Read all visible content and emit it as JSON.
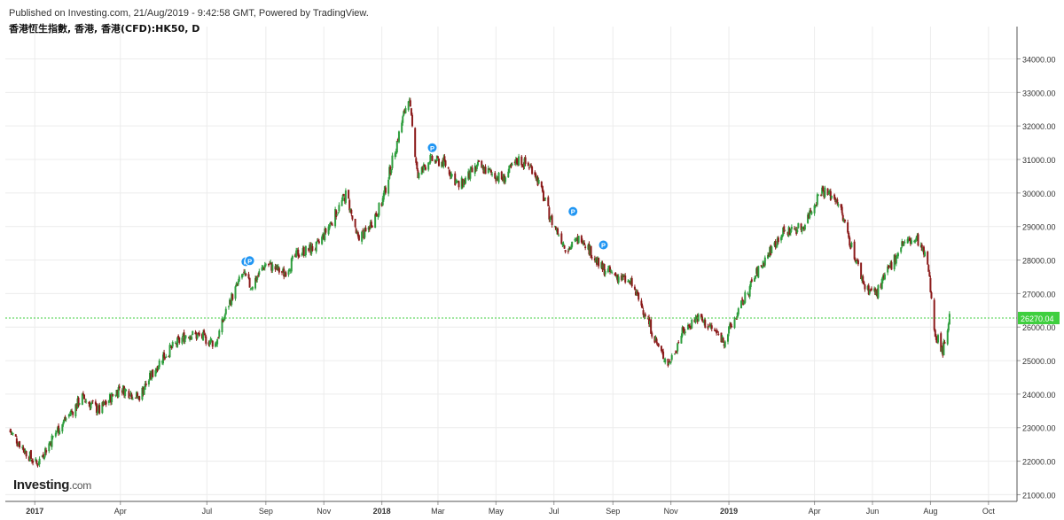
{
  "header": {
    "published": "Published on Investing.com, 21/Aug/2019 - 9:42:58 GMT, Powered by TradingView.",
    "symbol": "香港恆生指數, 香港, 香港(CFD):HK50, D"
  },
  "logo": {
    "main": "Investing",
    "suffix": ".com"
  },
  "colors": {
    "up": "#2e9e3e",
    "down": "#8b1a1a",
    "current_line": "#3fcf3f",
    "marker": "#2196f3",
    "grid": "#ececec"
  },
  "chart_data": {
    "type": "candlestick",
    "interval": "D",
    "x_tick_labels": [
      "2017",
      "Apr",
      "Jul",
      "Sep",
      "Nov",
      "2018",
      "Mar",
      "May",
      "Jul",
      "Sep",
      "Nov",
      "2019",
      "Apr",
      "Jun",
      "Aug",
      "Oct"
    ],
    "x_tick_dates": [
      "2017-01-01",
      "2017-04-01",
      "2017-07-01",
      "2017-09-01",
      "2017-11-01",
      "2018-01-01",
      "2018-03-01",
      "2018-05-01",
      "2018-07-01",
      "2018-09-01",
      "2018-11-01",
      "2019-01-01",
      "2019-04-01",
      "2019-06-01",
      "2019-08-01",
      "2019-10-01"
    ],
    "x_range": [
      "2016-12-01",
      "2019-10-31"
    ],
    "y_tick_labels": [
      "21000.00",
      "22000.00",
      "23000.00",
      "24000.00",
      "25000.00",
      "26000.00",
      "27000.00",
      "28000.00",
      "29000.00",
      "30000.00",
      "31000.00",
      "32000.00",
      "33000.00",
      "34000.00"
    ],
    "ylim": [
      20800,
      34700
    ],
    "current_price": 26270.04,
    "current_price_label": "26270.04",
    "price_path": [
      [
        "2016-12-06",
        22900
      ],
      [
        "2016-12-22",
        22300
      ],
      [
        "2017-01-03",
        21900
      ],
      [
        "2017-01-24",
        22900
      ],
      [
        "2017-02-20",
        23900
      ],
      [
        "2017-03-10",
        23500
      ],
      [
        "2017-03-31",
        24200
      ],
      [
        "2017-04-20",
        23900
      ],
      [
        "2017-05-15",
        25100
      ],
      [
        "2017-06-10",
        25800
      ],
      [
        "2017-06-26",
        25700
      ],
      [
        "2017-07-10",
        25500
      ],
      [
        "2017-07-24",
        26700
      ],
      [
        "2017-08-08",
        27600
      ],
      [
        "2017-08-16",
        27200
      ],
      [
        "2017-09-01",
        27900
      ],
      [
        "2017-09-20",
        27600
      ],
      [
        "2017-10-05",
        28200
      ],
      [
        "2017-10-25",
        28400
      ],
      [
        "2017-11-10",
        29200
      ],
      [
        "2017-11-25",
        30000
      ],
      [
        "2017-12-05",
        28700
      ],
      [
        "2017-12-15",
        28800
      ],
      [
        "2018-01-01",
        29700
      ],
      [
        "2018-01-15",
        31300
      ],
      [
        "2018-01-29",
        32900
      ],
      [
        "2018-02-08",
        30500
      ],
      [
        "2018-02-20",
        31000
      ],
      [
        "2018-03-08",
        30900
      ],
      [
        "2018-03-23",
        30200
      ],
      [
        "2018-04-12",
        30800
      ],
      [
        "2018-05-08",
        30400
      ],
      [
        "2018-05-25",
        31000
      ],
      [
        "2018-06-10",
        30700
      ],
      [
        "2018-06-28",
        29200
      ],
      [
        "2018-07-15",
        28300
      ],
      [
        "2018-07-30",
        28700
      ],
      [
        "2018-08-18",
        27800
      ],
      [
        "2018-08-31",
        27600
      ],
      [
        "2018-09-20",
        27300
      ],
      [
        "2018-10-05",
        26400
      ],
      [
        "2018-10-20",
        25300
      ],
      [
        "2018-10-30",
        24900
      ],
      [
        "2018-11-12",
        25800
      ],
      [
        "2018-11-28",
        26300
      ],
      [
        "2018-12-12",
        26000
      ],
      [
        "2018-12-27",
        25600
      ],
      [
        "2019-01-10",
        26400
      ],
      [
        "2019-01-30",
        27600
      ],
      [
        "2019-02-25",
        28800
      ],
      [
        "2019-03-20",
        29000
      ],
      [
        "2019-04-08",
        30100
      ],
      [
        "2019-04-25",
        29800
      ],
      [
        "2019-05-10",
        28400
      ],
      [
        "2019-05-24",
        27200
      ],
      [
        "2019-06-05",
        27000
      ],
      [
        "2019-06-18",
        27700
      ],
      [
        "2019-07-02",
        28500
      ],
      [
        "2019-07-18",
        28600
      ],
      [
        "2019-07-29",
        27900
      ],
      [
        "2019-08-06",
        25800
      ],
      [
        "2019-08-14",
        25300
      ],
      [
        "2019-08-21",
        26270
      ]
    ],
    "markers": [
      {
        "label": "P",
        "date": "2017-08-11",
        "price": 27950
      },
      {
        "label": "P",
        "date": "2017-08-15",
        "price": 27980
      },
      {
        "label": "P",
        "date": "2018-02-23",
        "price": 31350
      },
      {
        "label": "P",
        "date": "2018-07-21",
        "price": 29450
      },
      {
        "label": "P",
        "date": "2018-08-22",
        "price": 28450
      }
    ]
  }
}
